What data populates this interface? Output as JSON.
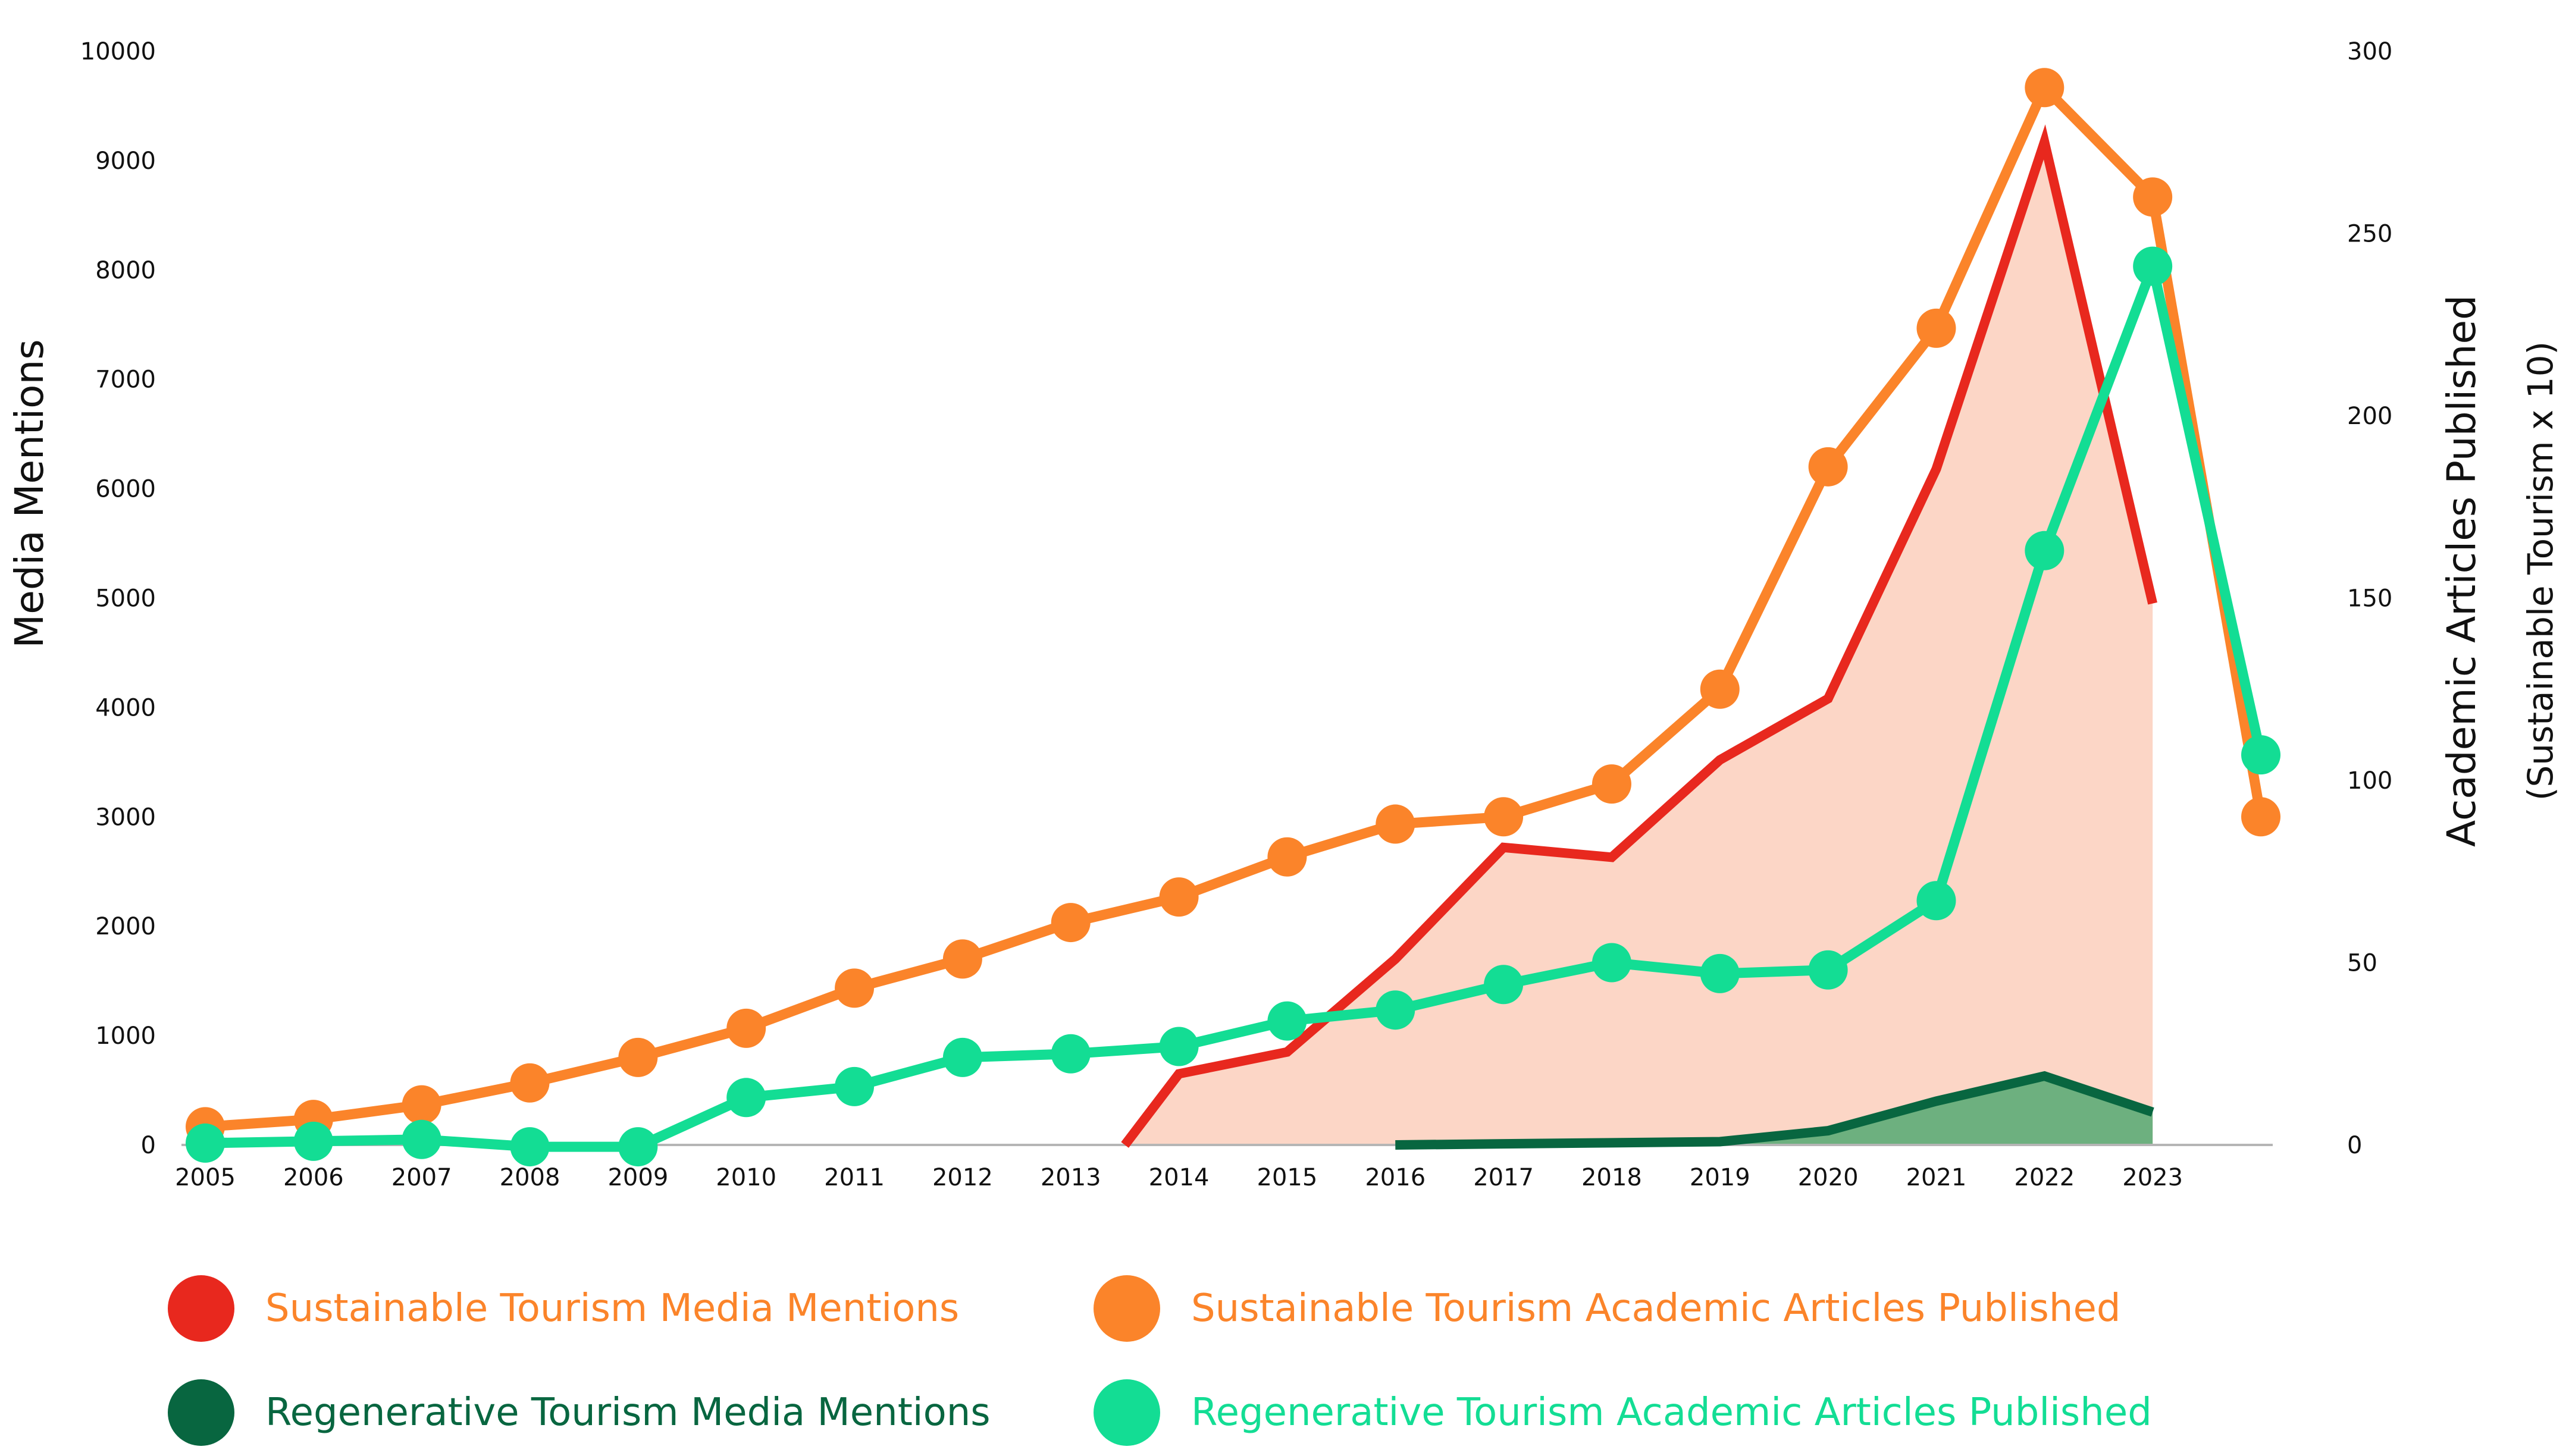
{
  "chart_data": {
    "type": "line",
    "title": "",
    "x": [
      2005,
      2006,
      2007,
      2008,
      2009,
      2010,
      2011,
      2012,
      2013,
      2014,
      2015,
      2016,
      2017,
      2018,
      2019,
      2020,
      2021,
      2022,
      2023
    ],
    "x_tick_labels": [
      "2005",
      "2006",
      "2007",
      "2008",
      "2009",
      "2010",
      "2011",
      "2012",
      "2013",
      "2014",
      "2015",
      "2016",
      "2017",
      "2018",
      "2019",
      "2020",
      "2021",
      "2022",
      "2023"
    ],
    "ylabel_left": "Media Mentions",
    "ylim_left": [
      0,
      10000
    ],
    "y_ticks_left": [
      "0",
      "1000",
      "2000",
      "3000",
      "4000",
      "5000",
      "6000",
      "7000",
      "8000",
      "9000",
      "10000"
    ],
    "ylabel_right": "Academic Articles Published",
    "ylabel_right_sub": "(Sustainable  Tourism  x  10)",
    "ylim_right": [
      0,
      300
    ],
    "y_ticks_right": [
      "0",
      "50",
      "100",
      "150",
      "200",
      "250",
      "300"
    ],
    "series": [
      {
        "name": "Sustainable Tourism Media Mentions",
        "axis": "left",
        "style": "area-line",
        "color": "#e8281e",
        "fill": "#fcd6c6",
        "points": [
          [
            2013.5,
            0
          ],
          [
            2014,
            650
          ],
          [
            2015,
            850
          ],
          [
            2016,
            1700
          ],
          [
            2017,
            2720
          ],
          [
            2018,
            2630
          ],
          [
            2019,
            3520
          ],
          [
            2020,
            4080
          ],
          [
            2021,
            6180
          ],
          [
            2022,
            9170
          ],
          [
            2023,
            4950
          ]
        ]
      },
      {
        "name": "Regenerative Tourism Media Mentions",
        "axis": "left",
        "style": "area-line",
        "color": "#086640",
        "fill": "#6db07f",
        "points": [
          [
            2016,
            0
          ],
          [
            2017,
            10
          ],
          [
            2018,
            20
          ],
          [
            2019,
            30
          ],
          [
            2020,
            130
          ],
          [
            2021,
            400
          ],
          [
            2022,
            630
          ],
          [
            2023,
            300
          ]
        ]
      },
      {
        "name": "Sustainable Tourism Academic Articles Published",
        "axis": "right",
        "style": "line-markers",
        "color": "#fb842a",
        "points": [
          [
            2005,
            5
          ],
          [
            2006,
            7
          ],
          [
            2007,
            11
          ],
          [
            2008,
            17
          ],
          [
            2009,
            24
          ],
          [
            2010,
            32
          ],
          [
            2011,
            43
          ],
          [
            2012,
            51
          ],
          [
            2013,
            61
          ],
          [
            2014,
            68
          ],
          [
            2015,
            79
          ],
          [
            2016,
            88
          ],
          [
            2017,
            90
          ],
          [
            2018,
            99
          ],
          [
            2019,
            125
          ],
          [
            2020,
            186
          ],
          [
            2021,
            224
          ],
          [
            2022,
            290
          ],
          [
            2023,
            260
          ],
          [
            2024,
            90
          ]
        ]
      },
      {
        "name": "Regenerative Tourism Academic Articles Published",
        "axis": "right",
        "style": "line-markers",
        "color": "#13dd94",
        "points": [
          [
            2005,
            0.5
          ],
          [
            2006,
            1
          ],
          [
            2007,
            1.5
          ],
          [
            2008,
            -0.5
          ],
          [
            2009,
            -0.5
          ],
          [
            2010,
            13
          ],
          [
            2011,
            16
          ],
          [
            2012,
            24
          ],
          [
            2013,
            25
          ],
          [
            2014,
            27
          ],
          [
            2015,
            34
          ],
          [
            2016,
            37
          ],
          [
            2017,
            44
          ],
          [
            2018,
            50
          ],
          [
            2019,
            47
          ],
          [
            2020,
            48
          ],
          [
            2021,
            67
          ],
          [
            2022,
            163
          ],
          [
            2023,
            241
          ],
          [
            2024,
            107
          ]
        ]
      }
    ],
    "legend": [
      {
        "label": "Sustainable Tourism Media Mentions",
        "dot_color": "#e8281e",
        "text_color": "#fb842a"
      },
      {
        "label": "Sustainable Tourism Academic Articles Published",
        "dot_color": "#fb842a",
        "text_color": "#fb842a"
      },
      {
        "label": "Regenerative Tourism Media Mentions",
        "dot_color": "#086640",
        "text_color": "#086640"
      },
      {
        "label": "Regenerative Tourism Academic Articles Published",
        "dot_color": "#13dd94",
        "text_color": "#13dd94"
      }
    ],
    "legend_position": "bottom"
  }
}
